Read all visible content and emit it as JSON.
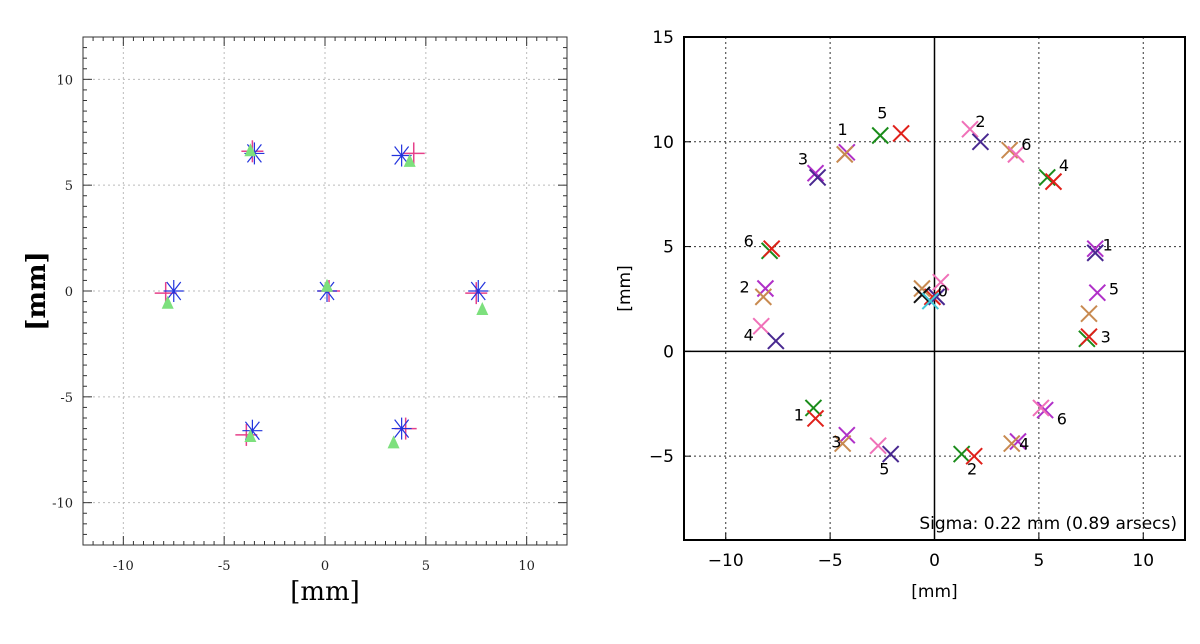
{
  "chart_data": [
    {
      "type": "scatter",
      "xlabel": "[mm]",
      "ylabel": "[mm]",
      "xlim": [
        -12,
        12
      ],
      "ylim": [
        -12,
        12
      ],
      "x_ticks": [
        -10,
        -5,
        0,
        5,
        10
      ],
      "y_ticks": [
        -10,
        -5,
        0,
        5,
        10
      ],
      "x_tick_labels": [
        "-10",
        "-5",
        "0",
        "5",
        "10"
      ],
      "y_tick_labels": [
        "-10",
        "-5",
        "0",
        "5",
        "10"
      ],
      "grid": true,
      "colors": {
        "plus": "#e6408a",
        "star": "#2233dd",
        "triangle": "#7de07d"
      },
      "series": [
        {
          "marker": "plus",
          "color": "#e6408a",
          "points": [
            [
              -3.6,
              6.6
            ],
            [
              4.4,
              6.5
            ],
            [
              -7.9,
              -0.1
            ],
            [
              0.2,
              0.0
            ],
            [
              7.5,
              -0.1
            ],
            [
              -3.9,
              -6.8
            ],
            [
              4.0,
              -6.5
            ]
          ]
        },
        {
          "marker": "star",
          "color": "#2233dd",
          "points": [
            [
              -3.5,
              6.5
            ],
            [
              3.8,
              6.4
            ],
            [
              -7.5,
              0.0
            ],
            [
              0.1,
              0.0
            ],
            [
              7.6,
              0.0
            ],
            [
              -3.6,
              -6.6
            ],
            [
              3.8,
              -6.5
            ]
          ]
        },
        {
          "marker": "triangle",
          "color": "#7de07d",
          "points": [
            [
              -3.7,
              6.6
            ],
            [
              4.2,
              6.1
            ],
            [
              -7.8,
              -0.6
            ],
            [
              0.1,
              0.2
            ],
            [
              7.8,
              -0.9
            ],
            [
              -3.7,
              -6.9
            ],
            [
              3.4,
              -7.2
            ]
          ]
        }
      ]
    },
    {
      "type": "scatter",
      "xlabel": "[mm]",
      "ylabel": "[mm]",
      "xlim": [
        -12,
        12
      ],
      "ylim": [
        -9,
        15
      ],
      "x_ticks": [
        -10,
        -5,
        0,
        5,
        10
      ],
      "y_ticks": [
        -5,
        0,
        5,
        10,
        15
      ],
      "x_tick_labels": [
        "−10",
        "−5",
        "0",
        "5",
        "10"
      ],
      "y_tick_labels": [
        "−5",
        "0",
        "5",
        "10",
        "15"
      ],
      "grid": true,
      "annotation": "Sigma: 0.22 mm (0.89 arsecs)",
      "colors": {
        "green": "#1a8c1a",
        "red": "#e0201a",
        "purple": "#b030c8",
        "tan": "#c88a50",
        "pink": "#f070b8",
        "indigo": "#482890",
        "black": "#111111",
        "cyan": "#40c8d8"
      },
      "series": [
        {
          "marker": "x",
          "color": "#1a8c1a",
          "points": [
            [
              -5.8,
              -2.7
            ],
            [
              -2.6,
              10.3
            ],
            [
              5.4,
              8.3
            ],
            [
              -7.9,
              4.8
            ],
            [
              7.3,
              0.6
            ],
            [
              1.3,
              -4.9
            ]
          ]
        },
        {
          "marker": "x",
          "color": "#e0201a",
          "points": [
            [
              -5.7,
              -3.2
            ],
            [
              -1.6,
              10.4
            ],
            [
              5.7,
              8.1
            ],
            [
              -7.8,
              4.9
            ],
            [
              7.4,
              0.7
            ],
            [
              1.9,
              -5.0
            ],
            [
              -0.1,
              2.6
            ]
          ]
        },
        {
          "marker": "x",
          "color": "#b030c8",
          "points": [
            [
              -4.2,
              -4.0
            ],
            [
              -4.2,
              9.5
            ],
            [
              7.7,
              4.9
            ],
            [
              -8.1,
              3.0
            ],
            [
              7.8,
              2.8
            ],
            [
              4.0,
              -4.3
            ],
            [
              5.3,
              -2.8
            ],
            [
              -5.7,
              8.5
            ]
          ]
        },
        {
          "marker": "x",
          "color": "#c88a50",
          "points": [
            [
              -4.3,
              9.4
            ],
            [
              -8.2,
              2.6
            ],
            [
              7.4,
              1.8
            ],
            [
              3.7,
              -4.4
            ],
            [
              -4.4,
              -4.4
            ],
            [
              -0.6,
              3.0
            ],
            [
              3.6,
              9.6
            ]
          ]
        },
        {
          "marker": "x",
          "color": "#f070b8",
          "points": [
            [
              -8.3,
              1.2
            ],
            [
              -2.7,
              -4.5
            ],
            [
              1.7,
              10.6
            ],
            [
              3.9,
              9.4
            ],
            [
              0.3,
              3.3
            ],
            [
              5.1,
              -2.7
            ]
          ]
        },
        {
          "marker": "x",
          "color": "#482890",
          "points": [
            [
              -7.6,
              0.5
            ],
            [
              -2.1,
              -4.9
            ],
            [
              2.2,
              10.0
            ],
            [
              -5.6,
              8.3
            ],
            [
              7.7,
              4.7
            ],
            [
              0.1,
              2.6
            ]
          ]
        },
        {
          "marker": "x",
          "color": "#111111",
          "points": [
            [
              -0.6,
              2.7
            ]
          ]
        },
        {
          "marker": "x",
          "color": "#40c8d8",
          "points": [
            [
              -0.2,
              2.4
            ]
          ]
        }
      ],
      "labels": [
        {
          "text": "1",
          "x": -4.4,
          "y": 10.6
        },
        {
          "text": "5",
          "x": -2.5,
          "y": 11.4
        },
        {
          "text": "2",
          "x": 2.2,
          "y": 11.0
        },
        {
          "text": "6",
          "x": 4.4,
          "y": 9.9
        },
        {
          "text": "3",
          "x": -6.3,
          "y": 9.2
        },
        {
          "text": "4",
          "x": 6.2,
          "y": 8.9
        },
        {
          "text": "6",
          "x": -8.9,
          "y": 5.3
        },
        {
          "text": "1",
          "x": 8.3,
          "y": 5.1
        },
        {
          "text": "2",
          "x": -9.1,
          "y": 3.1
        },
        {
          "text": "5",
          "x": 8.6,
          "y": 3.0
        },
        {
          "text": "0",
          "x": 0.4,
          "y": 2.9
        },
        {
          "text": "4",
          "x": -8.9,
          "y": 0.8
        },
        {
          "text": "3",
          "x": 8.2,
          "y": 0.7
        },
        {
          "text": "1",
          "x": -6.5,
          "y": -3.0
        },
        {
          "text": "6",
          "x": 6.1,
          "y": -3.2
        },
        {
          "text": "3",
          "x": -4.7,
          "y": -4.3
        },
        {
          "text": "4",
          "x": 4.3,
          "y": -4.4
        },
        {
          "text": "5",
          "x": -2.4,
          "y": -5.6
        },
        {
          "text": "2",
          "x": 1.8,
          "y": -5.6
        }
      ]
    }
  ]
}
